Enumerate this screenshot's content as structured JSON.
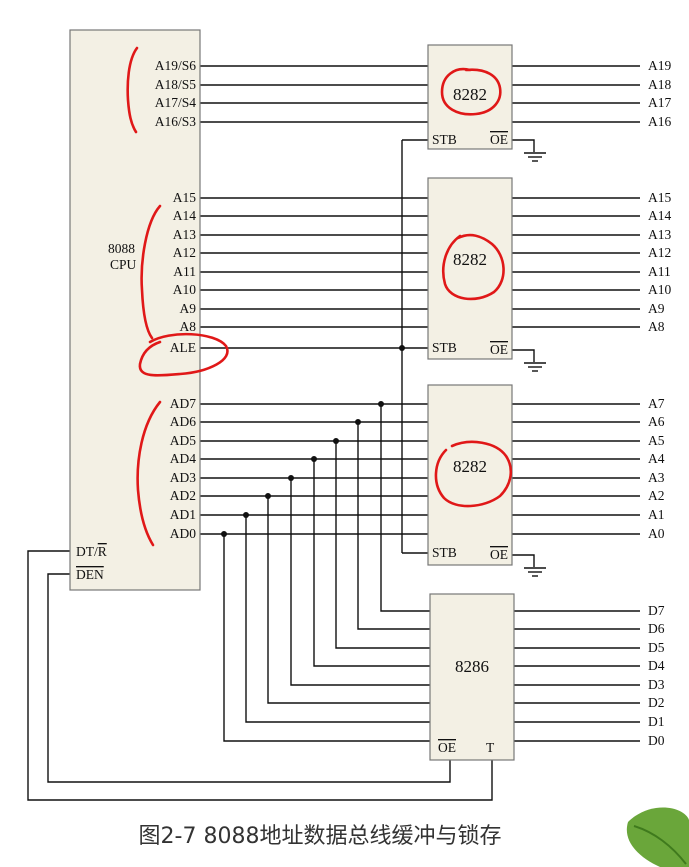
{
  "cpu": {
    "name": "8088",
    "name_line2": "CPU",
    "pins": {
      "A19S6": "A19/S6",
      "A18S5": "A18/S5",
      "A17S4": "A17/S4",
      "A16S3": "A16/S3",
      "A15": "A15",
      "A14": "A14",
      "A13": "A13",
      "A12": "A12",
      "A11": "A11",
      "A10": "A10",
      "A9": "A9",
      "A8": "A8",
      "ALE": "ALE",
      "AD7": "AD7",
      "AD6": "AD6",
      "AD5": "AD5",
      "AD4": "AD4",
      "AD3": "AD3",
      "AD2": "AD2",
      "AD1": "AD1",
      "AD0": "AD0",
      "DTR_DT": "DT/",
      "DTR_R": "R",
      "DEN": "DEN"
    }
  },
  "latch_high": {
    "name": "8282",
    "stb": "STB",
    "oe": "OE",
    "outputs": [
      "A19",
      "A18",
      "A17",
      "A16"
    ]
  },
  "latch_mid": {
    "name": "8282",
    "stb": "STB",
    "oe": "OE",
    "outputs": [
      "A15",
      "A14",
      "A13",
      "A12",
      "A11",
      "A10",
      "A9",
      "A8"
    ]
  },
  "latch_low": {
    "name": "8282",
    "stb": "STB",
    "oe": "OE",
    "outputs": [
      "A7",
      "A6",
      "A5",
      "A4",
      "A3",
      "A2",
      "A1",
      "A0"
    ]
  },
  "transceiver": {
    "name": "8286",
    "oe": "OE",
    "t": "T",
    "outputs": [
      "D7",
      "D6",
      "D5",
      "D4",
      "D3",
      "D2",
      "D1",
      "D0"
    ]
  },
  "caption": "图2-7 8088地址数据总线缓冲与锁存",
  "colors": {
    "chip_fill": "#f3f0e4",
    "annotation_ink": "#e01818",
    "wire": "#111111"
  }
}
